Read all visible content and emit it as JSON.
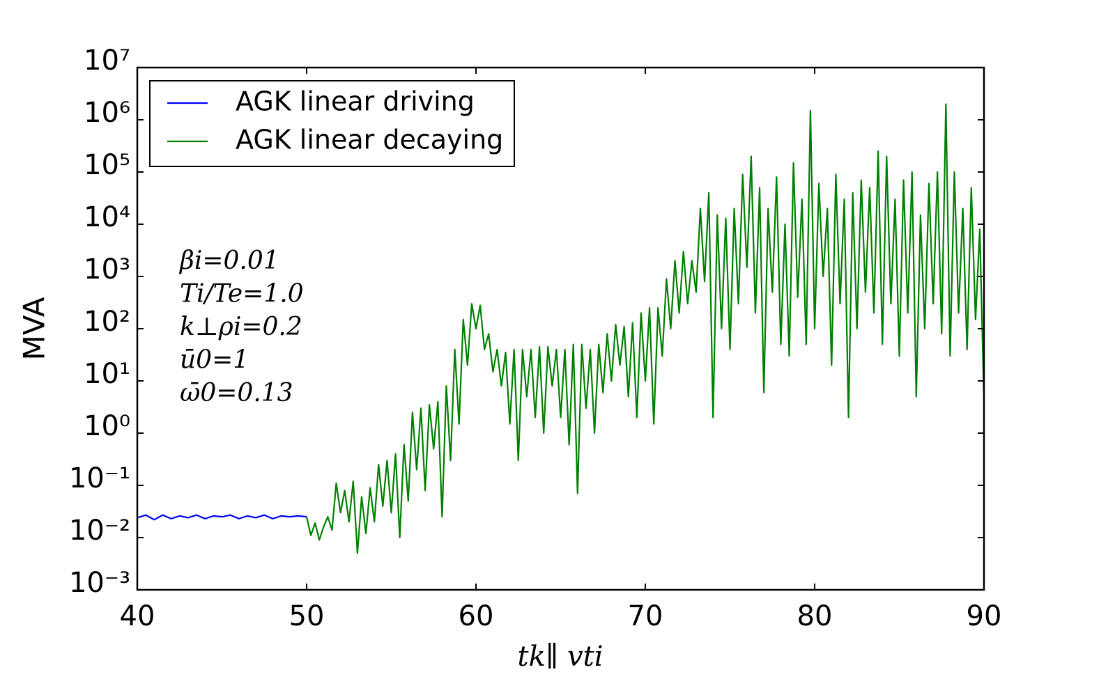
{
  "chart_data": {
    "type": "line",
    "ylabel": "MVA",
    "xlabel": "tk∥ vti",
    "annotations": [
      "βi=0.01",
      "Ti/Te=1.0",
      "k⊥ρi=0.2",
      "ū0=1",
      "ω̄0=0.13"
    ],
    "xlim": [
      40,
      90
    ],
    "xticks": [
      40,
      50,
      60,
      70,
      80,
      90
    ],
    "ylim": [
      0.001,
      10000000
    ],
    "yscale": "log",
    "yticks": [
      {
        "value": 0.001,
        "label": "10⁻³"
      },
      {
        "value": 0.01,
        "label": "10⁻²"
      },
      {
        "value": 0.1,
        "label": "10⁻¹"
      },
      {
        "value": 1,
        "label": "10⁰"
      },
      {
        "value": 10,
        "label": "10¹"
      },
      {
        "value": 100,
        "label": "10²"
      },
      {
        "value": 1000,
        "label": "10³"
      },
      {
        "value": 10000,
        "label": "10⁴"
      },
      {
        "value": 100000,
        "label": "10⁵"
      },
      {
        "value": 1000000,
        "label": "10⁶"
      },
      {
        "value": 10000000,
        "label": "10⁷"
      }
    ],
    "legend": "upper left",
    "series": [
      {
        "name": "AGK linear driving",
        "color": "#0000ff",
        "x": [
          40,
          40.5,
          41,
          41.5,
          42,
          42.5,
          43,
          43.5,
          44,
          44.5,
          45,
          45.5,
          46,
          46.5,
          47,
          47.5,
          48,
          48.5,
          49,
          49.5,
          50
        ],
        "values": [
          0.024,
          0.027,
          0.022,
          0.027,
          0.023,
          0.026,
          0.024,
          0.027,
          0.023,
          0.026,
          0.025,
          0.027,
          0.023,
          0.026,
          0.024,
          0.027,
          0.023,
          0.026,
          0.025,
          0.026,
          0.025
        ]
      },
      {
        "name": "AGK linear decaying",
        "color": "#008000",
        "x": [
          50,
          50.25,
          50.5,
          50.75,
          51,
          51.25,
          51.5,
          51.75,
          52,
          52.25,
          52.5,
          52.75,
          53,
          53.25,
          53.5,
          53.75,
          54,
          54.25,
          54.5,
          54.75,
          55,
          55.25,
          55.5,
          55.75,
          56,
          56.25,
          56.5,
          56.75,
          57,
          57.25,
          57.5,
          57.75,
          58,
          58.25,
          58.5,
          58.75,
          59,
          59.25,
          59.5,
          59.75,
          60,
          60.25,
          60.5,
          60.75,
          61,
          61.25,
          61.5,
          61.75,
          62,
          62.25,
          62.5,
          62.75,
          63,
          63.25,
          63.5,
          63.75,
          64,
          64.25,
          64.5,
          64.75,
          65,
          65.25,
          65.5,
          65.75,
          66,
          66.25,
          66.5,
          66.75,
          67,
          67.25,
          67.5,
          67.75,
          68,
          68.25,
          68.5,
          68.75,
          69,
          69.25,
          69.5,
          69.75,
          70,
          70.25,
          70.5,
          70.75,
          71,
          71.25,
          71.5,
          71.75,
          72,
          72.25,
          72.5,
          72.75,
          73,
          73.25,
          73.5,
          73.75,
          74,
          74.25,
          74.5,
          74.75,
          75,
          75.25,
          75.5,
          75.75,
          76,
          76.25,
          76.5,
          76.75,
          77,
          77.25,
          77.5,
          77.75,
          78,
          78.25,
          78.5,
          78.75,
          79,
          79.25,
          79.5,
          79.75,
          80,
          80.25,
          80.5,
          80.75,
          81,
          81.25,
          81.5,
          81.75,
          82,
          82.25,
          82.5,
          82.75,
          83,
          83.25,
          83.5,
          83.75,
          84,
          84.25,
          84.5,
          84.75,
          85,
          85.25,
          85.5,
          85.75,
          86,
          86.25,
          86.5,
          86.75,
          87,
          87.25,
          87.5,
          87.75,
          88,
          88.25,
          88.5,
          88.75,
          89,
          89.25,
          89.5,
          89.75,
          90
        ],
        "values": [
          0.025,
          0.011,
          0.019,
          0.009,
          0.016,
          0.025,
          0.014,
          0.11,
          0.03,
          0.08,
          0.02,
          0.12,
          0.005,
          0.06,
          0.012,
          0.09,
          0.02,
          0.25,
          0.04,
          0.3,
          0.03,
          0.4,
          0.01,
          0.6,
          0.05,
          2.5,
          0.2,
          3,
          0.08,
          3.5,
          0.5,
          4,
          0.025,
          8,
          0.3,
          40,
          1.5,
          150,
          20,
          300,
          100,
          280,
          40,
          80,
          15,
          40,
          8,
          35,
          1.5,
          40,
          0.3,
          40,
          5,
          40,
          2,
          45,
          1,
          45,
          8,
          40,
          2,
          40,
          0.6,
          50,
          0.07,
          50,
          3,
          40,
          1,
          50,
          6,
          80,
          10,
          120,
          20,
          110,
          5,
          130,
          2,
          200,
          10,
          250,
          1.5,
          250,
          30,
          900,
          100,
          2000,
          200,
          3000,
          300,
          2000,
          500,
          20000,
          800,
          40000,
          2,
          15000,
          100,
          13000,
          40,
          20000,
          300,
          90000,
          1500,
          200000,
          200,
          50000,
          6,
          20000,
          500,
          80000,
          50,
          10000,
          30,
          150000,
          400,
          30000,
          50,
          1500000,
          100,
          60000,
          1000,
          20000,
          20,
          90000,
          300,
          30000,
          2,
          40000,
          100,
          70000,
          500,
          50000,
          200,
          250000,
          50,
          200000,
          300,
          30000,
          30,
          70000,
          200,
          100000,
          5,
          15000,
          100,
          60000,
          300,
          100000,
          80,
          2000000,
          30,
          100000,
          200,
          20000,
          40,
          50000,
          150,
          8000,
          4
        ]
      }
    ]
  }
}
